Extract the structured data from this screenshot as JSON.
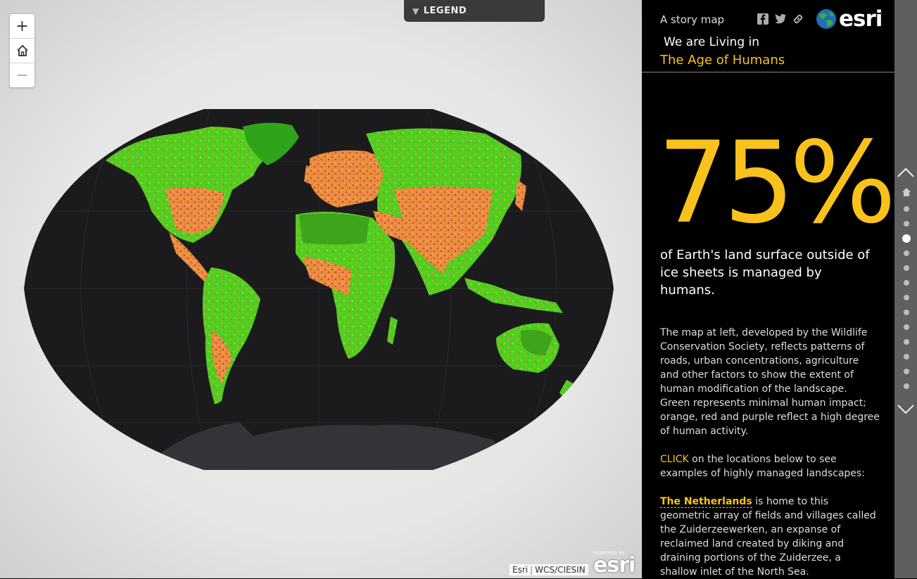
{
  "legend": {
    "label": "LEGEND"
  },
  "attribution": {
    "esri": "Esri",
    "source": "WCS/CIESIN"
  },
  "powered": {
    "small": "POWERED BY",
    "brand": "esri"
  },
  "header": {
    "kicker": "A story map",
    "title_line1": "We are Living in",
    "title_line2": "The Age of Humans",
    "logo_text": "esri"
  },
  "content": {
    "big_stat": "75%",
    "stat_caption": "of Earth's land surface outside of ice sheets is managed by humans.",
    "body": "The map at left, developed by the Wildlife Conservation Society, reflects patterns of roads, urban concentrations, agriculture and other factors to show the extent of human modification of the landscape. Green represents minimal human impact; orange, red and purple reflect a high degree of human activity.",
    "click_word": "CLICK",
    "click_rest": " on the locations below to see examples of highly managed landscapes:",
    "place_name": "The Netherlands",
    "place_text": " is home to this geometric array of fields and villages called the Zuiderzeewerken, an expanse of reclaimed land created by diking and draining portions of the Zuiderzee, a shallow inlet of the North Sea."
  },
  "colors": {
    "accent": "#f7c21b",
    "panel": "#000000",
    "rail": "#5f5f5f"
  }
}
